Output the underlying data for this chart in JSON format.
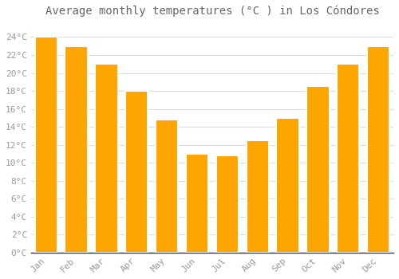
{
  "title": "Average monthly temperatures (°C ) in Los Cóndores",
  "months": [
    "Jan",
    "Feb",
    "Mar",
    "Apr",
    "May",
    "Jun",
    "Jul",
    "Aug",
    "Sep",
    "Oct",
    "Nov",
    "Dec"
  ],
  "values": [
    24.0,
    23.0,
    21.0,
    18.0,
    14.8,
    11.0,
    10.8,
    12.5,
    15.0,
    18.5,
    21.0,
    23.0
  ],
  "bar_color": "#FFA500",
  "bar_edge_color": "#FFFFFF",
  "background_color": "#FFFFFF",
  "plot_bg_color": "#FFFFFF",
  "grid_color": "#dddddd",
  "ylim": [
    0,
    25.5
  ],
  "yticks": [
    0,
    2,
    4,
    6,
    8,
    10,
    12,
    14,
    16,
    18,
    20,
    22,
    24
  ],
  "title_fontsize": 10,
  "tick_fontsize": 8,
  "tick_color": "#999999",
  "title_color": "#666666"
}
